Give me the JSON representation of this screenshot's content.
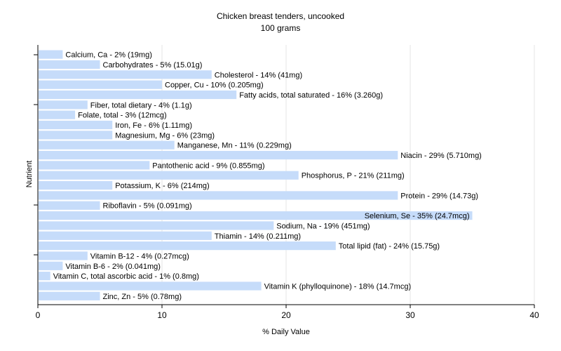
{
  "chart_data": {
    "type": "bar",
    "orientation": "horizontal",
    "title": "Chicken breast tenders, uncooked",
    "subtitle": "100 grams",
    "xlabel": "% Daily Value",
    "ylabel": "Nutrient",
    "xlim": [
      0,
      40
    ],
    "xticks": [
      0,
      10,
      20,
      30,
      40
    ],
    "grid": true,
    "bar_color": "#c6dcfa",
    "categories": [
      "Calcium, Ca",
      "Carbohydrates",
      "Cholesterol",
      "Copper, Cu",
      "Fatty acids, total saturated",
      "Fiber, total dietary",
      "Folate, total",
      "Iron, Fe",
      "Magnesium, Mg",
      "Manganese, Mn",
      "Niacin",
      "Pantothenic acid",
      "Phosphorus, P",
      "Potassium, K",
      "Protein",
      "Riboflavin",
      "Selenium, Se",
      "Sodium, Na",
      "Thiamin",
      "Total lipid (fat)",
      "Vitamin B-12",
      "Vitamin B-6",
      "Vitamin C, total ascorbic acid",
      "Vitamin K (phylloquinone)",
      "Zinc, Zn"
    ],
    "values": [
      2,
      5,
      14,
      10,
      16,
      4,
      3,
      6,
      6,
      11,
      29,
      9,
      21,
      6,
      29,
      5,
      35,
      19,
      14,
      24,
      4,
      2,
      1,
      18,
      5
    ],
    "labels": [
      "Calcium, Ca - 2% (19mg)",
      "Carbohydrates - 5% (15.01g)",
      "Cholesterol - 14% (41mg)",
      "Copper, Cu - 10% (0.205mg)",
      "Fatty acids, total saturated - 16% (3.260g)",
      "Fiber, total dietary - 4% (1.1g)",
      "Folate, total - 3% (12mcg)",
      "Iron, Fe - 6% (1.11mg)",
      "Magnesium, Mg - 6% (23mg)",
      "Manganese, Mn - 11% (0.229mg)",
      "Niacin - 29% (5.710mg)",
      "Pantothenic acid - 9% (0.855mg)",
      "Phosphorus, P - 21% (211mg)",
      "Potassium, K - 6% (214mg)",
      "Protein - 29% (14.73g)",
      "Riboflavin - 5% (0.091mg)",
      "Selenium, Se - 35% (24.7mcg)",
      "Sodium, Na - 19% (451mg)",
      "Thiamin - 14% (0.211mg)",
      "Total lipid (fat) - 24% (15.75g)",
      "Vitamin B-12 - 4% (0.27mcg)",
      "Vitamin B-6 - 2% (0.041mg)",
      "Vitamin C, total ascorbic acid - 1% (0.8mg)",
      "Vitamin K (phylloquinone) - 18% (14.7mcg)",
      "Zinc, Zn - 5% (0.78mg)"
    ]
  }
}
